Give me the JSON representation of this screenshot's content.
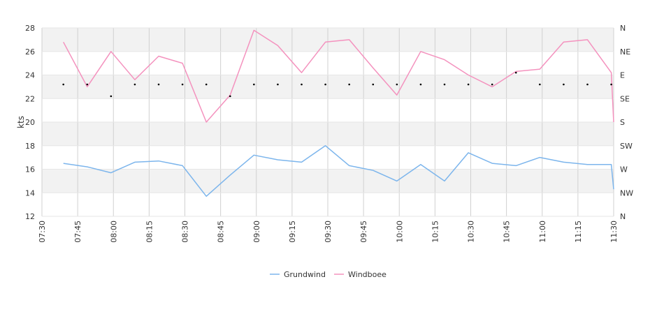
{
  "chart_data": {
    "type": "line",
    "ylabel": "kts",
    "ylim": [
      12,
      28
    ],
    "y_ticks": [
      12,
      14,
      16,
      18,
      20,
      22,
      24,
      26,
      28
    ],
    "x_range": [
      "07:30",
      "11:30"
    ],
    "x_ticks": [
      "07:30",
      "07:45",
      "08:00",
      "08:15",
      "08:30",
      "08:45",
      "09:00",
      "09:15",
      "09:30",
      "09:45",
      "10:00",
      "10:15",
      "10:30",
      "10:45",
      "11:00",
      "11:15",
      "11:30"
    ],
    "right_axis_labels": [
      "N",
      "NW",
      "W",
      "SW",
      "S",
      "SE",
      "E",
      "NE",
      "N"
    ],
    "grid": true,
    "legend_position": "bottom",
    "series": [
      {
        "name": "Grundwind",
        "color": "#7cb5ec",
        "x": [
          "07:39",
          "07:49",
          "07:59",
          "08:09",
          "08:19",
          "08:29",
          "08:39",
          "08:49",
          "08:59",
          "09:09",
          "09:19",
          "09:29",
          "09:39",
          "09:49",
          "09:59",
          "10:09",
          "10:19",
          "10:29",
          "10:39",
          "10:49",
          "10:59",
          "11:09",
          "11:19",
          "11:29",
          "11:30"
        ],
        "values": [
          16.5,
          16.2,
          15.7,
          16.6,
          16.7,
          16.3,
          13.7,
          15.5,
          17.2,
          16.8,
          16.6,
          18.0,
          16.3,
          15.9,
          15.0,
          16.4,
          15.0,
          17.4,
          16.5,
          16.3,
          17.0,
          16.6,
          16.4,
          16.4,
          14.3
        ]
      },
      {
        "name": "Windboee",
        "color": "#f492be",
        "x": [
          "07:39",
          "07:49",
          "07:59",
          "08:09",
          "08:19",
          "08:29",
          "08:39",
          "08:49",
          "08:59",
          "09:09",
          "09:19",
          "09:29",
          "09:39",
          "09:49",
          "09:59",
          "10:09",
          "10:19",
          "10:29",
          "10:39",
          "10:49",
          "10:59",
          "11:09",
          "11:19",
          "11:29",
          "11:30"
        ],
        "values": [
          26.8,
          23.0,
          26.0,
          23.6,
          25.6,
          25.0,
          20.0,
          22.3,
          27.8,
          26.5,
          24.2,
          26.8,
          27.0,
          24.6,
          22.3,
          26.0,
          25.3,
          24.0,
          23.0,
          24.3,
          24.5,
          26.8,
          27.0,
          24.2,
          20.0
        ]
      },
      {
        "name": "",
        "type": "scatter",
        "color": "#000000",
        "x": [
          "07:39",
          "07:49",
          "07:59",
          "08:09",
          "08:19",
          "08:29",
          "08:39",
          "08:49",
          "08:59",
          "09:09",
          "09:19",
          "09:29",
          "09:39",
          "09:49",
          "09:59",
          "10:09",
          "10:19",
          "10:29",
          "10:39",
          "10:49",
          "10:59",
          "11:09",
          "11:19",
          "11:29"
        ],
        "values": [
          23.2,
          23.2,
          22.2,
          23.2,
          23.2,
          23.2,
          23.2,
          22.2,
          23.2,
          23.2,
          23.2,
          23.2,
          23.2,
          23.2,
          23.2,
          23.2,
          23.2,
          23.2,
          23.2,
          24.2,
          23.2,
          23.2,
          23.2,
          23.2
        ]
      }
    ]
  }
}
